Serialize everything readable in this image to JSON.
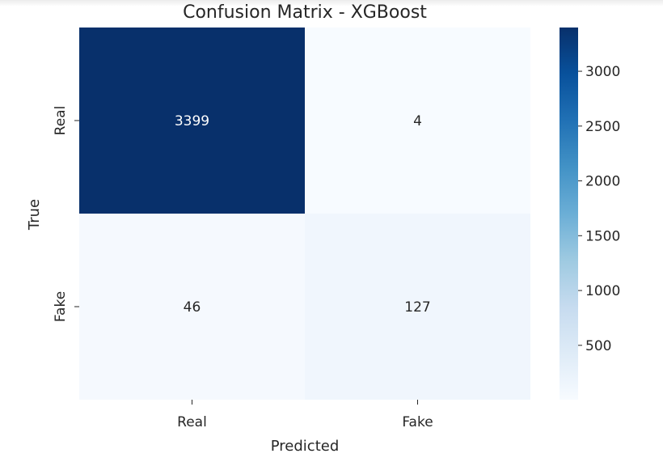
{
  "chart_data": {
    "type": "heatmap",
    "title": "Confusion Matrix - XGBoost",
    "xlabel": "Predicted",
    "ylabel": "True",
    "x_categories": [
      "Real",
      "Fake"
    ],
    "y_categories": [
      "Real",
      "Fake"
    ],
    "values": [
      [
        3399,
        4
      ],
      [
        46,
        127
      ]
    ],
    "colormap": "Blues",
    "colorbar": {
      "min": 4,
      "max": 3399,
      "ticks": [
        500,
        1000,
        1500,
        2000,
        2500,
        3000
      ]
    },
    "grid": false
  }
}
